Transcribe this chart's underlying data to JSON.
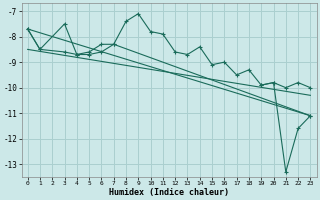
{
  "xlabel": "Humidex (Indice chaleur)",
  "bg_color": "#cce8e8",
  "grid_color": "#aacfcf",
  "line_color": "#1a6b5a",
  "xlim": [
    -0.5,
    23.5
  ],
  "ylim": [
    -13.5,
    -6.7
  ],
  "yticks": [
    -13,
    -12,
    -11,
    -10,
    -9,
    -8,
    -7
  ],
  "xticks": [
    0,
    1,
    2,
    3,
    4,
    5,
    6,
    7,
    8,
    9,
    10,
    11,
    12,
    13,
    14,
    15,
    16,
    17,
    18,
    19,
    20,
    21,
    22,
    23
  ],
  "series1_x": [
    0,
    1,
    3,
    4,
    5,
    6,
    7,
    8,
    9,
    10,
    11,
    12,
    13,
    14,
    15,
    16,
    17,
    18,
    19,
    20,
    21,
    22,
    23
  ],
  "series1_y": [
    -7.7,
    -8.5,
    -7.5,
    -8.7,
    -8.6,
    -8.3,
    -8.3,
    -7.4,
    -7.1,
    -7.8,
    -7.9,
    -8.6,
    -8.7,
    -8.4,
    -9.1,
    -9.0,
    -9.5,
    -9.3,
    -9.9,
    -9.8,
    -10.0,
    -9.8,
    -10.0
  ],
  "series2_x": [
    0,
    1,
    3,
    4,
    5,
    6,
    7,
    23
  ],
  "series2_y": [
    -7.7,
    -8.5,
    -8.6,
    -8.7,
    -8.7,
    -8.6,
    -8.3,
    -11.1
  ],
  "line1_x": [
    0,
    23
  ],
  "line1_y": [
    -7.7,
    -11.1
  ],
  "line2_x": [
    0,
    23
  ],
  "line2_y": [
    -8.5,
    -10.3
  ],
  "spike_x": [
    19,
    20,
    21,
    22,
    23
  ],
  "spike_y": [
    -9.9,
    -9.8,
    -13.3,
    -11.6,
    -11.1
  ]
}
